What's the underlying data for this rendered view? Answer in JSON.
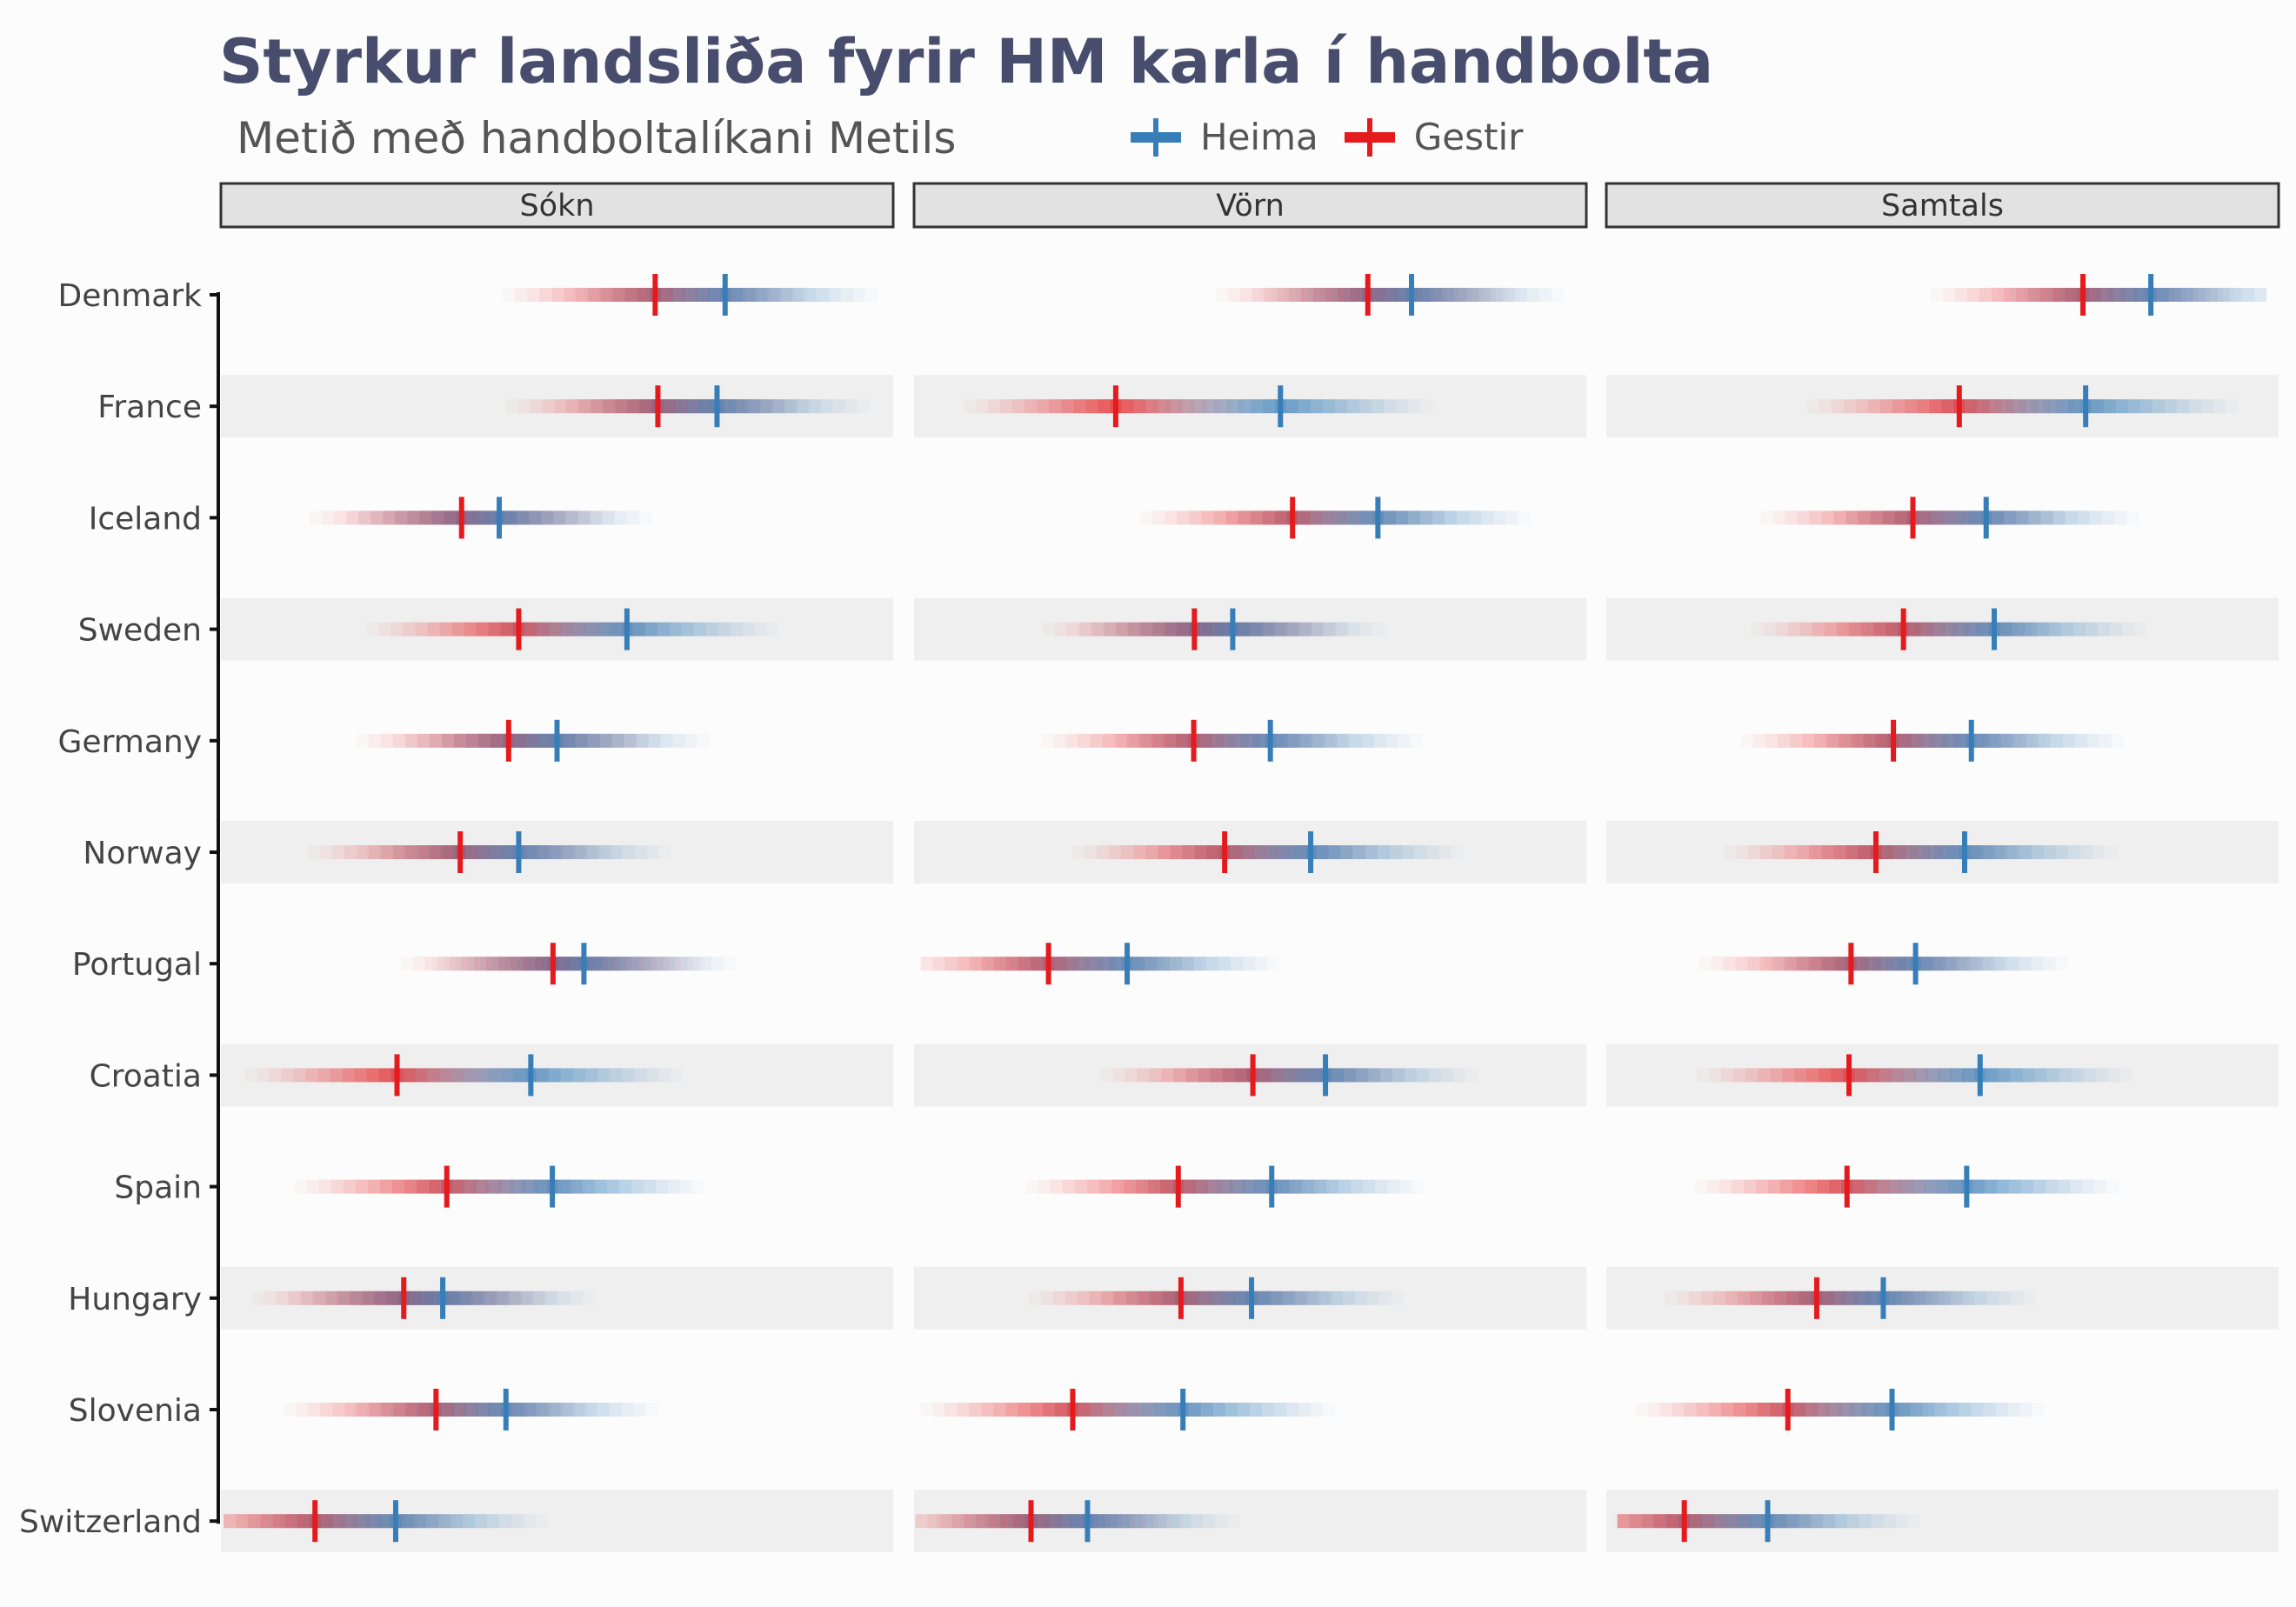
{
  "title": "Styrkur landsliða fyrir HM karla í handbolta",
  "subtitle": "Metið með handboltalíkani Metils",
  "legend": [
    {
      "label": "Heima",
      "color": "#377eb8"
    },
    {
      "label": "Gestir",
      "color": "#e41a1c"
    }
  ],
  "chart_data": {
    "type": "scatter",
    "orientation": "horizontal",
    "legend_position": "top",
    "x_axis_labels": "none",
    "grid": false,
    "facets": [
      "Sókn",
      "Vörn",
      "Samtals"
    ],
    "categories": [
      "Denmark",
      "France",
      "Iceland",
      "Sweden",
      "Germany",
      "Norway",
      "Portugal",
      "Croatia",
      "Spain",
      "Hungary",
      "Slovenia",
      "Switzerland"
    ],
    "series": [
      {
        "name": "Heima",
        "color": "#377eb8",
        "values": [
          [
            0.75,
            0.738,
            0.414,
            0.604,
            0.5,
            0.443,
            0.54,
            0.461,
            0.493,
            0.33,
            0.424,
            0.26
          ],
          [
            0.74,
            0.545,
            0.69,
            0.474,
            0.53,
            0.59,
            0.317,
            0.612,
            0.532,
            0.502,
            0.4,
            0.258
          ],
          [
            0.81,
            0.713,
            0.565,
            0.577,
            0.543,
            0.533,
            0.46,
            0.556,
            0.536,
            0.412,
            0.425,
            0.24
          ]
        ]
      },
      {
        "name": "Gestir",
        "color": "#e41a1c",
        "values": [
          [
            0.646,
            0.65,
            0.358,
            0.443,
            0.428,
            0.356,
            0.494,
            0.262,
            0.336,
            0.272,
            0.32,
            0.14
          ],
          [
            0.675,
            0.3,
            0.563,
            0.417,
            0.416,
            0.462,
            0.2,
            0.504,
            0.393,
            0.397,
            0.236,
            0.174
          ],
          [
            0.709,
            0.525,
            0.456,
            0.442,
            0.427,
            0.401,
            0.364,
            0.361,
            0.358,
            0.313,
            0.27,
            0.116
          ]
        ]
      }
    ]
  }
}
